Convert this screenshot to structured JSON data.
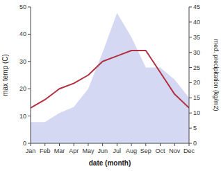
{
  "chart_data": {
    "type": "line",
    "xlabel": "date (month)",
    "ylabel": "max temp (C)",
    "y2label": "med. precipitation (kg/m2)",
    "categories": [
      "Jan",
      "Feb",
      "Mar",
      "Apr",
      "May",
      "Jun",
      "Jul",
      "Aug",
      "Sep",
      "Oct",
      "Nov",
      "Dec"
    ],
    "series": [
      {
        "type": "area",
        "color": "#b0b8e8",
        "axis": "y2",
        "values": [
          7,
          7,
          10,
          12,
          18,
          30,
          43,
          35,
          25,
          25,
          21,
          15
        ]
      },
      {
        "type": "line",
        "color": "#b03040",
        "values": [
          13,
          16,
          20,
          22,
          25,
          30,
          32,
          34,
          34,
          26,
          18,
          13
        ]
      }
    ],
    "ylim": [
      0,
      50
    ],
    "yticks": [
      0,
      10,
      20,
      30,
      40,
      50
    ],
    "y2lim": [
      0,
      45
    ],
    "y2ticks": [
      0,
      5,
      10,
      15,
      20,
      25,
      30,
      35,
      40,
      45
    ],
    "grid": false
  }
}
